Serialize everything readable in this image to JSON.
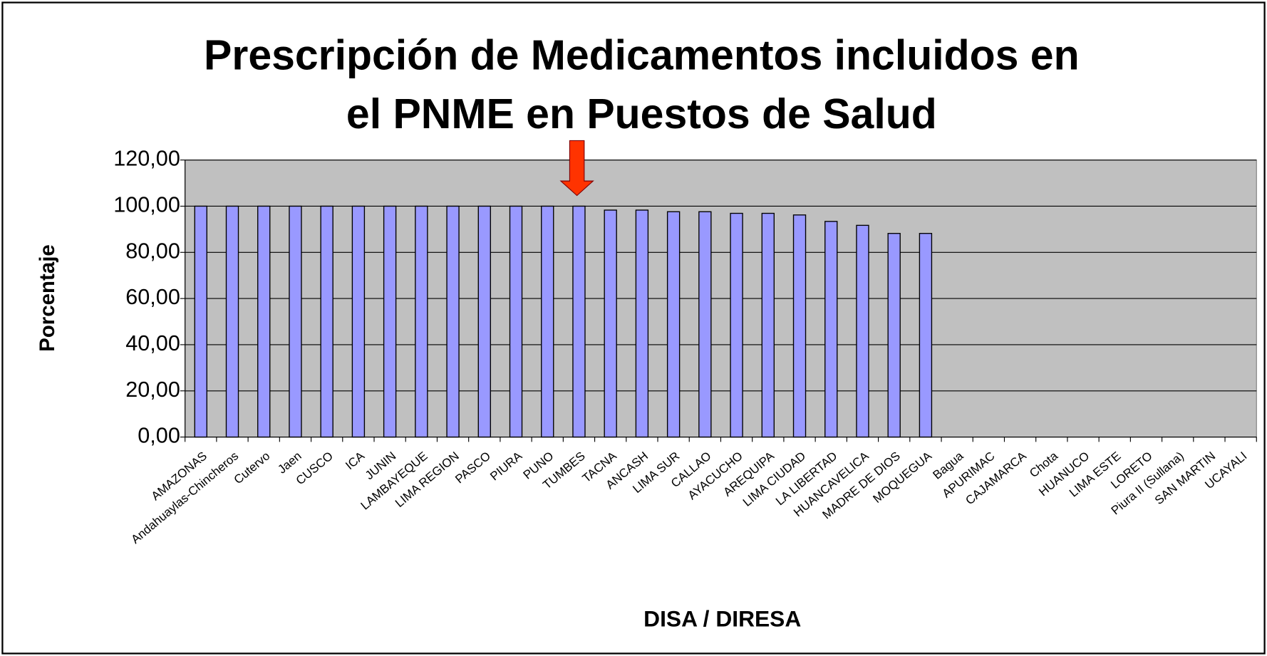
{
  "chart_data": {
    "type": "bar",
    "title": [
      "Prescripción de Medicamentos incluidos en",
      "el PNME en Puestos de Salud"
    ],
    "x_label": "DISA / DIRESA",
    "y_label": "Porcentaje",
    "categories": [
      "AMAZONAS",
      "Andahuaylas-Chincheros",
      "Cutervo",
      "Jaen",
      "CUSCO",
      "ICA",
      "JUNIN",
      "LAMBAYEQUE",
      "LIMA REGION",
      "PASCO",
      "PIURA",
      "PUNO",
      "TUMBES",
      "TACNA",
      "ANCASH",
      "LIMA SUR",
      "CALLAO",
      "AYACUCHO",
      "AREQUIPA",
      "LIMA CIUDAD",
      "LA LIBERTAD",
      "HUANCAVELICA",
      "MADRE DE DIOS",
      "MOQUEGUA",
      "Bagua",
      "APURIMAC",
      "CAJAMARCA",
      "Chota",
      "HUANUCO",
      "LIMA ESTE",
      "LORETO",
      "Piura II (Sullana)",
      "SAN MARTIN",
      "UCAYALI"
    ],
    "values": [
      100,
      100,
      100,
      100,
      100,
      100,
      100,
      100,
      100,
      100,
      100,
      100,
      100,
      98.3,
      98.3,
      97.6,
      97.6,
      96.9,
      96.9,
      96.2,
      93.4,
      91.7,
      88.2,
      88.2,
      null,
      null,
      null,
      null,
      null,
      null,
      null,
      null,
      null,
      null
    ],
    "color": "#9999ff",
    "ylim": [
      0,
      120
    ],
    "yticks": [
      {
        "value": 0,
        "label": "0,00"
      },
      {
        "value": 20,
        "label": "20,00"
      },
      {
        "value": 40,
        "label": "40,00"
      },
      {
        "value": 60,
        "label": "60,00"
      },
      {
        "value": 80,
        "label": "80,00"
      },
      {
        "value": 100,
        "label": "100,00"
      },
      {
        "value": 120,
        "label": "120,00"
      }
    ],
    "grid": true
  }
}
